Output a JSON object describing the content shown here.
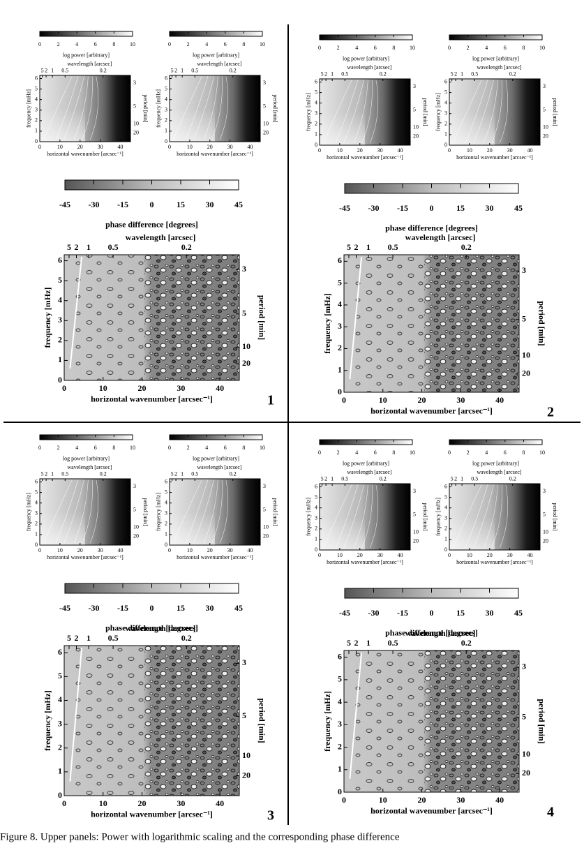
{
  "power_plot": {
    "colorbar_label": "log power [arbitrary]",
    "colorbar_lim": [
      0,
      10
    ],
    "colorbar_ticks": [
      0,
      2,
      4,
      6,
      8,
      10
    ],
    "top_label": "wavelength [arcsec]",
    "top_ticks": [
      5,
      2,
      1,
      0.5,
      0.2
    ],
    "x_label": "horizontal wavenumber [arcsec⁻¹]",
    "xlim": [
      0,
      45
    ],
    "xticks": [
      0,
      10,
      20,
      30,
      40
    ],
    "y_label": "frequency [mHz]",
    "ylim": [
      0,
      6.3
    ],
    "yticks": [
      0,
      1,
      2,
      3,
      4,
      5,
      6
    ],
    "y2_label": "period [min]",
    "y2ticks": [
      3,
      5,
      10,
      20
    ]
  },
  "phase_plot": {
    "colorbar_label": "phase difference [degrees]",
    "colorbar_lim": [
      -45,
      45
    ],
    "colorbar_ticks": [
      -45,
      -30,
      -15,
      0,
      15,
      30,
      45
    ],
    "top_label": "wavelength [arcsec]",
    "top_ticks": [
      5,
      2,
      1,
      0.5,
      0.2
    ],
    "x_label": "horizontal wavenumber [arcsec⁻¹]",
    "xlim": [
      0,
      45
    ],
    "xticks": [
      0,
      10,
      20,
      30,
      40
    ],
    "y_label": "frequency [mHz]",
    "ylim": [
      0,
      6.3
    ],
    "yticks": [
      0,
      1,
      2,
      3,
      4,
      5,
      6
    ],
    "y2_label": "period [min]",
    "y2ticks": [
      3,
      5,
      10,
      20
    ]
  },
  "panels": [
    {
      "number": "1"
    },
    {
      "number": "2"
    },
    {
      "number": "3"
    },
    {
      "number": "4"
    }
  ],
  "caption": "Figure 8. Upper panels: Power with logarithmic scaling and the corresponding phase difference"
}
